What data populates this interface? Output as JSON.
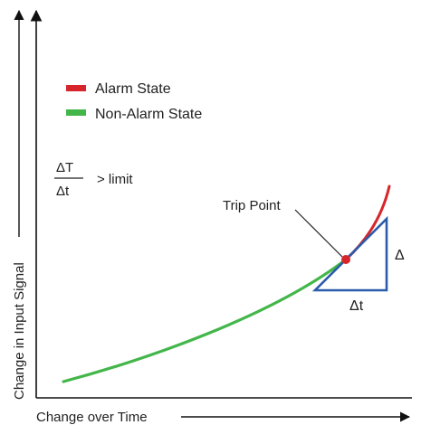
{
  "axes": {
    "x_label": "Change over Time",
    "y_label": "Change in Input Signal"
  },
  "legend": {
    "items": [
      {
        "label": "Alarm State",
        "color": "#d7262b"
      },
      {
        "label": "Non-Alarm State",
        "color": "#43b649"
      }
    ]
  },
  "formula": {
    "numerator": "ΔT",
    "denominator": "Δt",
    "condition": "> limit"
  },
  "annotations": {
    "trip_point": "Trip Point",
    "delta_vertical": "Δ",
    "delta_horizontal": "Δt"
  },
  "colors": {
    "axis": "#111111",
    "triangle": "#2a5caa",
    "trip_point": "#d7262b"
  }
}
